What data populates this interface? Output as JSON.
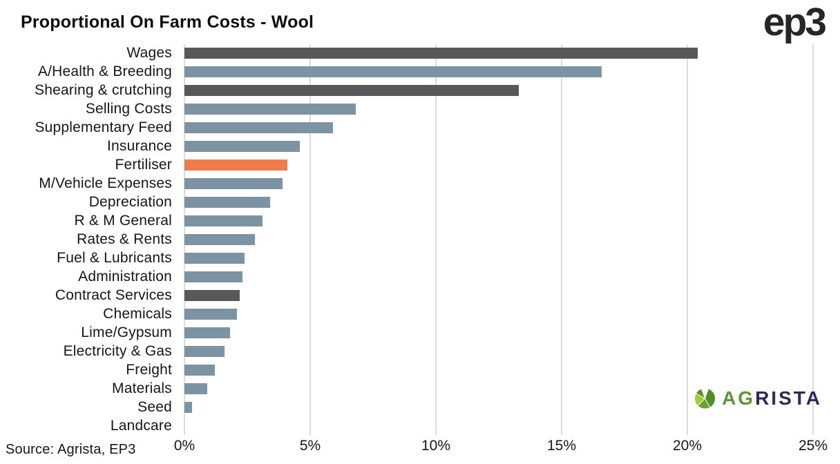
{
  "title": "Proportional On Farm Costs - Wool",
  "source_note": "Source: Agrista, EP3",
  "header_logo_text": "ep3",
  "footer_logo": {
    "prefix": "AG",
    "suffix": "RISTA"
  },
  "colors": {
    "bar_blue": "#7b93a2",
    "bar_dark": "#58585a",
    "bar_orange": "#f07c4a",
    "gridline": "#dcdcdc",
    "text": "#161616",
    "ep3_dark": "#262626",
    "agrista_green": "#5d9733",
    "agrista_navy": "#2b2a5a"
  },
  "chart_data": {
    "type": "bar",
    "orientation": "horizontal",
    "title": "Proportional On Farm Costs - Wool",
    "xlabel": "",
    "ylabel": "",
    "xlim": [
      0,
      25
    ],
    "x_ticks": [
      "0%",
      "5%",
      "10%",
      "15%",
      "20%",
      "25%"
    ],
    "x_tick_values": [
      0,
      5,
      10,
      15,
      20,
      25
    ],
    "grid": "vertical light-gray gridlines, no axis line",
    "legend": "none",
    "unit": "percent",
    "categories": [
      "Wages",
      "A/Health & Breeding",
      "Shearing & crutching",
      "Selling Costs",
      "Supplementary Feed",
      "Insurance",
      "Fertiliser",
      "M/Vehicle Expenses",
      "Depreciation",
      "R & M General",
      "Rates & Rents",
      "Fuel & Lubricants",
      "Administration",
      "Contract Services",
      "Chemicals",
      "Lime/Gypsum",
      "Electricity & Gas",
      "Freight",
      "Materials",
      "Seed",
      "Landcare"
    ],
    "values": [
      20.4,
      16.6,
      13.3,
      6.8,
      5.9,
      4.6,
      4.1,
      3.9,
      3.4,
      3.1,
      2.8,
      2.4,
      2.3,
      2.2,
      2.1,
      1.8,
      1.6,
      1.2,
      0.9,
      0.3,
      0
    ],
    "bar_color_keys": [
      "dark",
      "blue",
      "dark",
      "blue",
      "blue",
      "blue",
      "orange",
      "blue",
      "blue",
      "blue",
      "blue",
      "blue",
      "blue",
      "dark",
      "blue",
      "blue",
      "blue",
      "blue",
      "blue",
      "blue",
      "blue"
    ]
  }
}
